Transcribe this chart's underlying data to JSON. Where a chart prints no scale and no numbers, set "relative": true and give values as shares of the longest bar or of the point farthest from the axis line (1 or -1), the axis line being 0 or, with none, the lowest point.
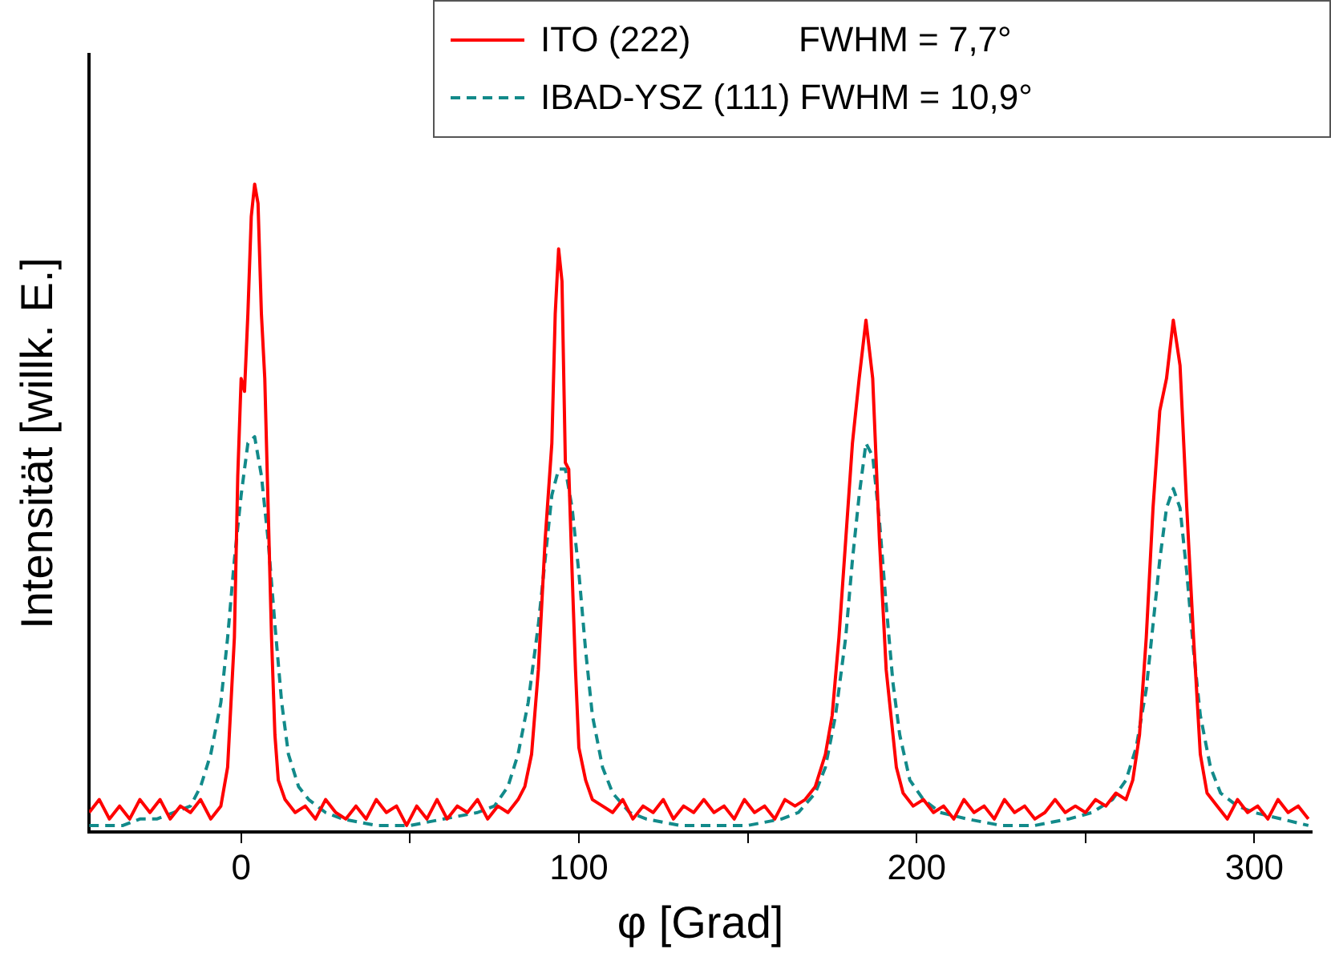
{
  "chart_data": {
    "type": "line",
    "xlabel": "φ [Grad]",
    "ylabel": "Intensität [willk. E.]",
    "relative": true,
    "xlim": [
      -45,
      317
    ],
    "xticks": [
      0,
      {
        "value": 50,
        "label": null
      },
      100,
      {
        "value": 150,
        "label": null
      },
      200,
      {
        "value": 250,
        "label": null
      },
      300
    ],
    "grid": false,
    "legend": "top right",
    "marker": "none",
    "series": [
      {
        "name": "ITO (222)           FWHM = 7,7°",
        "color": "#ff0000",
        "line_style": "solid",
        "x": [
          -45,
          -42,
          -39,
          -36,
          -33,
          -30,
          -27,
          -24,
          -21,
          -18,
          -15,
          -12,
          -9,
          -6,
          -4,
          -2,
          -1,
          0,
          1,
          2,
          3,
          4,
          5,
          6,
          7,
          8,
          9,
          10,
          11,
          13,
          16,
          19,
          22,
          25,
          28,
          31,
          34,
          37,
          40,
          43,
          46,
          49,
          52,
          55,
          58,
          61,
          64,
          67,
          70,
          73,
          76,
          79,
          82,
          84,
          86,
          88,
          90,
          92,
          93,
          94,
          95,
          96,
          97,
          98,
          99,
          100,
          102,
          104,
          107,
          110,
          113,
          116,
          119,
          122,
          125,
          128,
          131,
          134,
          137,
          140,
          143,
          146,
          149,
          152,
          155,
          158,
          161,
          164,
          167,
          170,
          173,
          175,
          177,
          179,
          181,
          183,
          185,
          187,
          189,
          191,
          192,
          194,
          196,
          199,
          202,
          205,
          208,
          211,
          214,
          217,
          220,
          223,
          226,
          229,
          232,
          235,
          238,
          241,
          244,
          247,
          250,
          253,
          256,
          259,
          262,
          264,
          266,
          268,
          270,
          272,
          274,
          276,
          278,
          280,
          282,
          284,
          286,
          289,
          292,
          295,
          298,
          301,
          304,
          307,
          310,
          313,
          316
        ],
        "values": [
          0.03,
          0.05,
          0.02,
          0.04,
          0.02,
          0.05,
          0.03,
          0.05,
          0.02,
          0.04,
          0.03,
          0.05,
          0.02,
          0.04,
          0.1,
          0.3,
          0.55,
          0.7,
          0.68,
          0.8,
          0.95,
          1,
          0.97,
          0.8,
          0.7,
          0.5,
          0.3,
          0.15,
          0.08,
          0.05,
          0.03,
          0.04,
          0.02,
          0.05,
          0.03,
          0.02,
          0.04,
          0.02,
          0.05,
          0.03,
          0.04,
          0.01,
          0.04,
          0.02,
          0.05,
          0.02,
          0.04,
          0.03,
          0.05,
          0.02,
          0.04,
          0.03,
          0.05,
          0.07,
          0.12,
          0.25,
          0.45,
          0.6,
          0.8,
          0.9,
          0.85,
          0.57,
          0.56,
          0.4,
          0.25,
          0.13,
          0.08,
          0.05,
          0.04,
          0.03,
          0.05,
          0.02,
          0.04,
          0.03,
          0.05,
          0.02,
          0.04,
          0.03,
          0.05,
          0.03,
          0.04,
          0.02,
          0.05,
          0.03,
          0.04,
          0.02,
          0.05,
          0.04,
          0.05,
          0.07,
          0.12,
          0.18,
          0.3,
          0.45,
          0.6,
          0.7,
          0.79,
          0.7,
          0.45,
          0.25,
          0.2,
          0.1,
          0.06,
          0.04,
          0.05,
          0.03,
          0.04,
          0.02,
          0.05,
          0.03,
          0.04,
          0.02,
          0.05,
          0.03,
          0.04,
          0.02,
          0.03,
          0.05,
          0.03,
          0.04,
          0.03,
          0.05,
          0.04,
          0.06,
          0.05,
          0.08,
          0.15,
          0.3,
          0.5,
          0.65,
          0.7,
          0.79,
          0.72,
          0.5,
          0.3,
          0.12,
          0.06,
          0.04,
          0.02,
          0.05,
          0.03,
          0.04,
          0.02,
          0.05,
          0.03,
          0.04,
          0.02
        ]
      },
      {
        "name": "IBAD-YSZ (111) FWHM = 10,9°",
        "color": "#128a8a",
        "line_style": "dashed",
        "x": [
          -45,
          -40,
          -35,
          -30,
          -25,
          -20,
          -15,
          -12,
          -9,
          -6,
          -4,
          -2,
          0,
          2,
          4,
          6,
          8,
          10,
          12,
          14,
          17,
          20,
          25,
          30,
          40,
          50,
          60,
          70,
          75,
          79,
          82,
          85,
          88,
          90,
          92,
          94,
          96,
          98,
          100,
          102,
          104,
          107,
          110,
          115,
          120,
          130,
          140,
          150,
          160,
          165,
          170,
          173,
          176,
          179,
          181,
          183,
          185,
          187,
          189,
          191,
          193,
          195,
          198,
          202,
          207,
          215,
          225,
          235,
          245,
          252,
          258,
          262,
          265,
          268,
          270,
          272,
          274,
          276,
          278,
          280,
          282,
          284,
          287,
          290,
          295,
          300,
          308,
          316
        ],
        "values": [
          0.01,
          0.01,
          0.01,
          0.02,
          0.02,
          0.03,
          0.04,
          0.07,
          0.12,
          0.2,
          0.3,
          0.42,
          0.52,
          0.6,
          0.61,
          0.55,
          0.45,
          0.32,
          0.2,
          0.12,
          0.07,
          0.05,
          0.03,
          0.02,
          0.01,
          0.01,
          0.02,
          0.03,
          0.04,
          0.07,
          0.12,
          0.2,
          0.32,
          0.42,
          0.52,
          0.56,
          0.56,
          0.5,
          0.4,
          0.28,
          0.18,
          0.1,
          0.06,
          0.03,
          0.02,
          0.01,
          0.01,
          0.01,
          0.02,
          0.03,
          0.06,
          0.1,
          0.18,
          0.3,
          0.42,
          0.52,
          0.6,
          0.58,
          0.48,
          0.35,
          0.23,
          0.15,
          0.08,
          0.05,
          0.03,
          0.02,
          0.01,
          0.01,
          0.02,
          0.03,
          0.05,
          0.08,
          0.13,
          0.22,
          0.32,
          0.42,
          0.5,
          0.53,
          0.5,
          0.4,
          0.28,
          0.18,
          0.1,
          0.06,
          0.04,
          0.03,
          0.02,
          0.01
        ]
      }
    ]
  }
}
